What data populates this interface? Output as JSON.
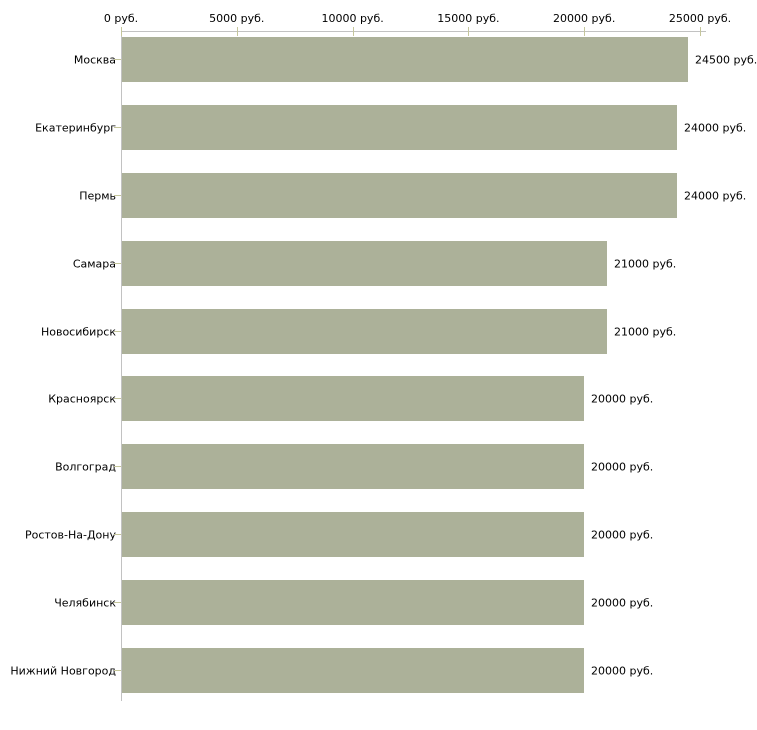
{
  "chart_data": {
    "type": "bar",
    "orientation": "horizontal",
    "categories": [
      "Москва",
      "Екатеринбург",
      "Пермь",
      "Самара",
      "Новосибирск",
      "Красноярск",
      "Волгоград",
      "Ростов-На-Дону",
      "Челябинск",
      "Нижний Новгород"
    ],
    "values": [
      24500,
      24000,
      24000,
      21000,
      21000,
      20000,
      20000,
      20000,
      20000,
      20000
    ],
    "value_labels": [
      "24500 руб.",
      "24000 руб.",
      "24000 руб.",
      "21000 руб.",
      "21000 руб.",
      "20000 руб.",
      "20000 руб.",
      "20000 руб.",
      "20000 руб.",
      "20000 руб."
    ],
    "x_ticks": [
      {
        "value": 0,
        "label": "0 руб."
      },
      {
        "value": 5000,
        "label": "5000 руб."
      },
      {
        "value": 10000,
        "label": "10000 руб."
      },
      {
        "value": 15000,
        "label": "15000 руб."
      },
      {
        "value": 20000,
        "label": "20000 руб."
      },
      {
        "value": 25000,
        "label": "25000 руб."
      }
    ],
    "xlim": [
      0,
      25000
    ],
    "unit": "руб.",
    "grid": false,
    "legend": null,
    "colors": {
      "bar": "#acb199",
      "axis": "#c2c2c2",
      "tick": "#c5c69b",
      "text": "#000000",
      "background": "#ffffff"
    }
  }
}
